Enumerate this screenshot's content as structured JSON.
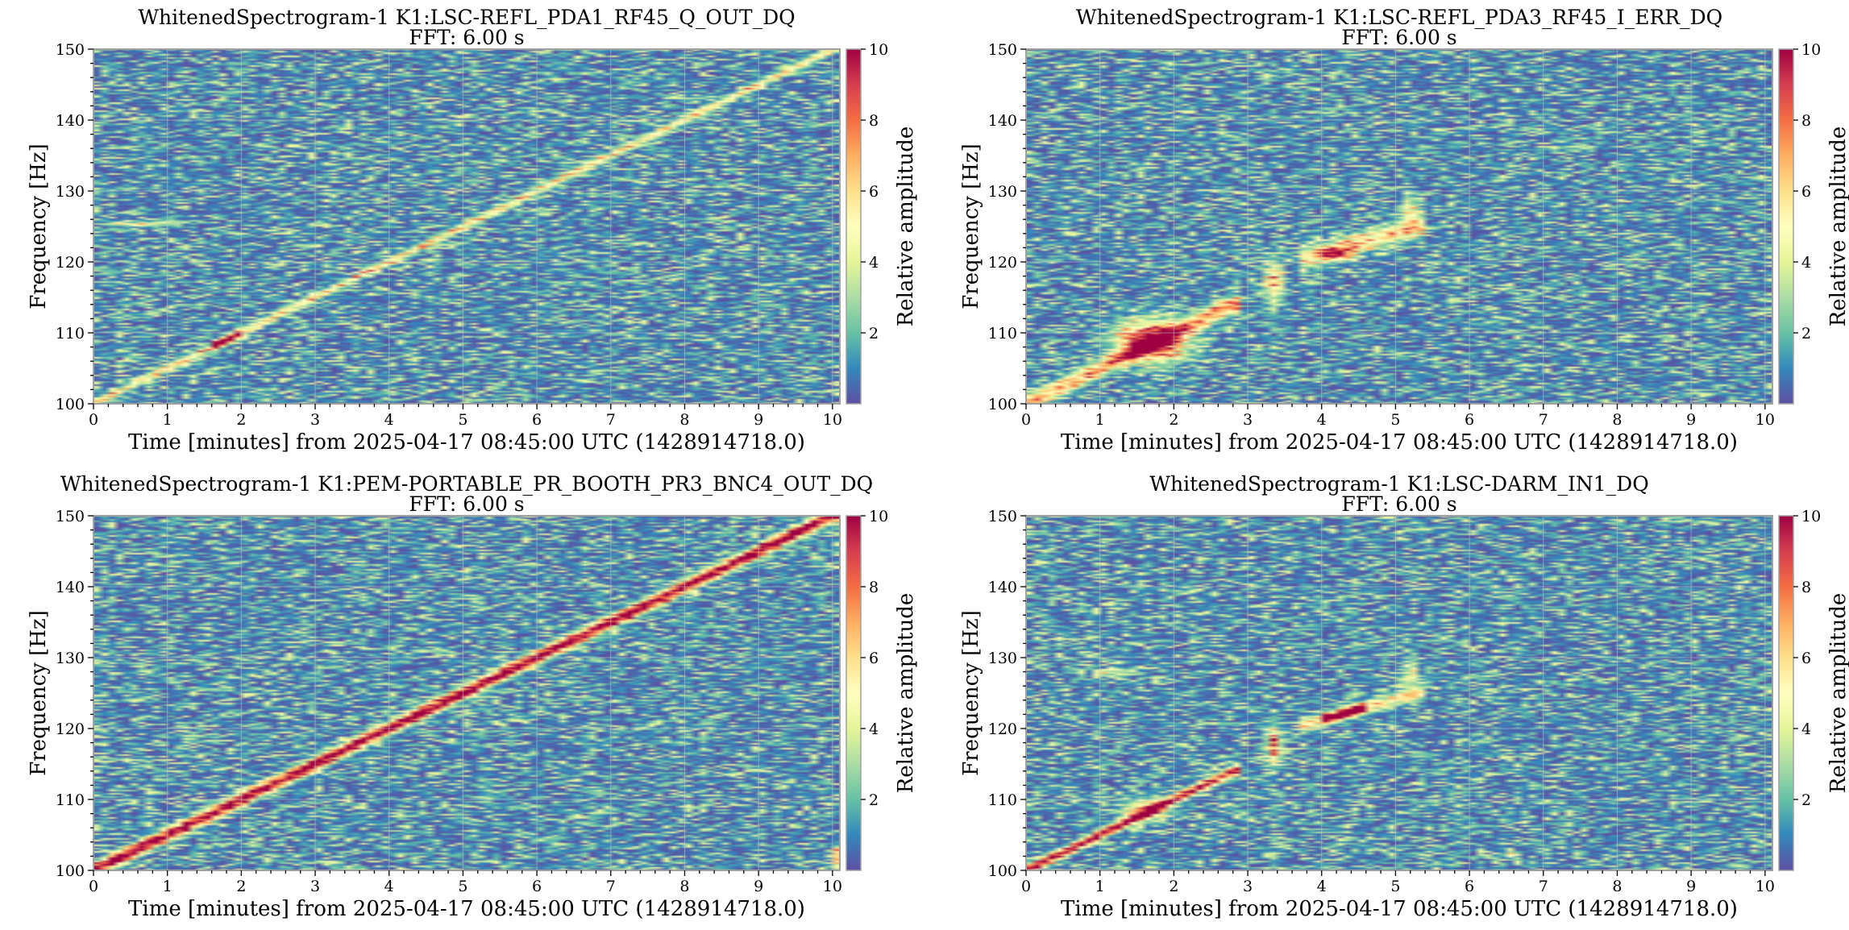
{
  "figure": {
    "colormap": "Spectral_r",
    "colormap_stops": [
      "#5e4fa2",
      "#3288bd",
      "#66c2a5",
      "#abdda4",
      "#e6f598",
      "#ffffbf",
      "#fee08b",
      "#fdae61",
      "#f46d43",
      "#d53e4f",
      "#9e0142"
    ],
    "frame_color": "#a0a0a0",
    "grid_color": "#c8c8c8"
  },
  "chart_data": [
    {
      "type": "heatmap",
      "title": "WhitenedSpectrogram-1 K1:LSC-REFL_PDA1_RF45_Q_OUT_DQ",
      "subtitle": "FFT: 6.00 s",
      "xlabel": "Time [minutes] from 2025-04-17 08:45:00 UTC (1428914718.0)",
      "ylabel": "Frequency [Hz]",
      "colorbar_label": "Relative amplitude",
      "xlim": [
        0,
        10.1
      ],
      "ylim": [
        100,
        150
      ],
      "clim": [
        0,
        10
      ],
      "x_ticks": [
        0,
        1,
        2,
        3,
        4,
        5,
        6,
        7,
        8,
        9,
        10
      ],
      "x_tick_labels": [
        "0",
        "1",
        "2",
        "3",
        "4",
        "5",
        "6",
        "7",
        "8",
        "9",
        "10"
      ],
      "y_ticks": [
        100,
        110,
        120,
        130,
        140,
        150
      ],
      "y_tick_labels": [
        "100",
        "110",
        "120",
        "130",
        "140",
        "150"
      ],
      "colorbar_ticks": [
        2,
        4,
        6,
        8,
        10
      ],
      "colorbar_tick_labels": [
        "2",
        "4",
        "6",
        "8",
        "10"
      ],
      "grid": true,
      "background_level": 1.5,
      "features": [
        {
          "kind": "line",
          "x": [
            0,
            10
          ],
          "y": [
            100,
            150
          ],
          "amplitude": 4.5,
          "width_hz": 0.6
        },
        {
          "kind": "line",
          "x": [
            1.6,
            2.0
          ],
          "y": [
            108,
            110
          ],
          "amplitude": 7,
          "width_hz": 0.6
        },
        {
          "kind": "line",
          "x": [
            0.3,
            1.1
          ],
          "y": [
            125.4,
            125.4
          ],
          "amplitude": 2.6,
          "width_hz": 0.4
        }
      ]
    },
    {
      "type": "heatmap",
      "title": "WhitenedSpectrogram-1 K1:LSC-REFL_PDA3_RF45_I_ERR_DQ",
      "subtitle": "FFT: 6.00 s",
      "xlabel": "Time [minutes] from 2025-04-17 08:45:00 UTC (1428914718.0)",
      "ylabel": "Frequency [Hz]",
      "colorbar_label": "Relative amplitude",
      "xlim": [
        0,
        10.1
      ],
      "ylim": [
        100,
        150
      ],
      "clim": [
        0,
        10
      ],
      "x_ticks": [
        0,
        1,
        2,
        3,
        4,
        5,
        6,
        7,
        8,
        9,
        10
      ],
      "x_tick_labels": [
        "0",
        "1",
        "2",
        "3",
        "4",
        "5",
        "6",
        "7",
        "8",
        "9",
        "10"
      ],
      "y_ticks": [
        100,
        110,
        120,
        130,
        140,
        150
      ],
      "y_tick_labels": [
        "100",
        "110",
        "120",
        "130",
        "140",
        "150"
      ],
      "colorbar_ticks": [
        2,
        4,
        6,
        8,
        10
      ],
      "colorbar_tick_labels": [
        "2",
        "4",
        "6",
        "8",
        "10"
      ],
      "grid": true,
      "background_level": 1.5,
      "features": [
        {
          "kind": "line",
          "x": [
            0,
            2.8
          ],
          "y": [
            100,
            114
          ],
          "amplitude": 6,
          "width_hz": 1.2
        },
        {
          "kind": "blob",
          "x": 1.7,
          "y": 108.8,
          "sx": 0.45,
          "sy": 2.8,
          "amplitude": 9
        },
        {
          "kind": "blob",
          "x": 3.35,
          "y": 117,
          "sx": 0.12,
          "sy": 3.0,
          "amplitude": 5.5
        },
        {
          "kind": "line",
          "x": [
            3.8,
            5.3
          ],
          "y": [
            120.5,
            125
          ],
          "amplitude": 4.5,
          "width_hz": 1.4
        },
        {
          "kind": "blob",
          "x": 4.2,
          "y": 121.2,
          "sx": 0.2,
          "sy": 0.8,
          "amplitude": 7
        },
        {
          "kind": "blob",
          "x": 5.2,
          "y": 127,
          "sx": 0.12,
          "sy": 2.2,
          "amplitude": 4
        }
      ]
    },
    {
      "type": "heatmap",
      "title": "WhitenedSpectrogram-1 K1:PEM-PORTABLE_PR_BOOTH_PR3_BNC4_OUT_DQ",
      "subtitle": "FFT: 6.00 s",
      "xlabel": "Time [minutes] from 2025-04-17 08:45:00 UTC (1428914718.0)",
      "ylabel": "Frequency [Hz]",
      "colorbar_label": "Relative amplitude",
      "xlim": [
        0,
        10.1
      ],
      "ylim": [
        100,
        150
      ],
      "clim": [
        0,
        10
      ],
      "x_ticks": [
        0,
        1,
        2,
        3,
        4,
        5,
        6,
        7,
        8,
        9,
        10
      ],
      "x_tick_labels": [
        "0",
        "1",
        "2",
        "3",
        "4",
        "5",
        "6",
        "7",
        "8",
        "9",
        "10"
      ],
      "y_ticks": [
        100,
        110,
        120,
        130,
        140,
        150
      ],
      "y_tick_labels": [
        "100",
        "110",
        "120",
        "130",
        "140",
        "150"
      ],
      "colorbar_ticks": [
        2,
        4,
        6,
        8,
        10
      ],
      "colorbar_tick_labels": [
        "2",
        "4",
        "6",
        "8",
        "10"
      ],
      "grid": true,
      "background_level": 1.5,
      "features": [
        {
          "kind": "line",
          "x": [
            0,
            10
          ],
          "y": [
            100,
            150
          ],
          "amplitude": 10,
          "width_hz": 0.9
        },
        {
          "kind": "blob",
          "x": 10.05,
          "y": 102,
          "sx": 0.05,
          "sy": 1.5,
          "amplitude": 5
        }
      ]
    },
    {
      "type": "heatmap",
      "title": "WhitenedSpectrogram-1 K1:LSC-DARM_IN1_DQ",
      "subtitle": "FFT: 6.00 s",
      "xlabel": "Time [minutes] from 2025-04-17 08:45:00 UTC (1428914718.0)",
      "ylabel": "Frequency [Hz]",
      "colorbar_label": "Relative amplitude",
      "xlim": [
        0,
        10.1
      ],
      "ylim": [
        100,
        150
      ],
      "clim": [
        0,
        10
      ],
      "x_ticks": [
        0,
        1,
        2,
        3,
        4,
        5,
        6,
        7,
        8,
        9,
        10
      ],
      "x_tick_labels": [
        "0",
        "1",
        "2",
        "3",
        "4",
        "5",
        "6",
        "7",
        "8",
        "9",
        "10"
      ],
      "y_ticks": [
        100,
        110,
        120,
        130,
        140,
        150
      ],
      "y_tick_labels": [
        "100",
        "110",
        "120",
        "130",
        "140",
        "150"
      ],
      "colorbar_ticks": [
        2,
        4,
        6,
        8,
        10
      ],
      "colorbar_tick_labels": [
        "2",
        "4",
        "6",
        "8",
        "10"
      ],
      "grid": true,
      "background_level": 1.5,
      "features": [
        {
          "kind": "line",
          "x": [
            0,
            2.8
          ],
          "y": [
            100,
            114
          ],
          "amplitude": 9,
          "width_hz": 0.7
        },
        {
          "kind": "blob",
          "x": 1.6,
          "y": 108.5,
          "sx": 0.3,
          "sy": 1.5,
          "amplitude": 5
        },
        {
          "kind": "blob",
          "x": 3.35,
          "y": 117.5,
          "sx": 0.1,
          "sy": 2.8,
          "amplitude": 6
        },
        {
          "kind": "line",
          "x": [
            3.8,
            5.3
          ],
          "y": [
            120.5,
            125
          ],
          "amplitude": 4.5,
          "width_hz": 0.9
        },
        {
          "kind": "line",
          "x": [
            4.1,
            4.6
          ],
          "y": [
            121.5,
            123
          ],
          "amplitude": 8,
          "width_hz": 0.6
        },
        {
          "kind": "blob",
          "x": 5.2,
          "y": 127.5,
          "sx": 0.1,
          "sy": 2.0,
          "amplitude": 4
        },
        {
          "kind": "blob",
          "x": 6.55,
          "y": 102.3,
          "sx": 0.12,
          "sy": 0.5,
          "amplitude": 4
        },
        {
          "kind": "line",
          "x": [
            1.0,
            1.4
          ],
          "y": [
            128,
            128
          ],
          "amplitude": 2.6,
          "width_hz": 0.4
        }
      ]
    }
  ]
}
